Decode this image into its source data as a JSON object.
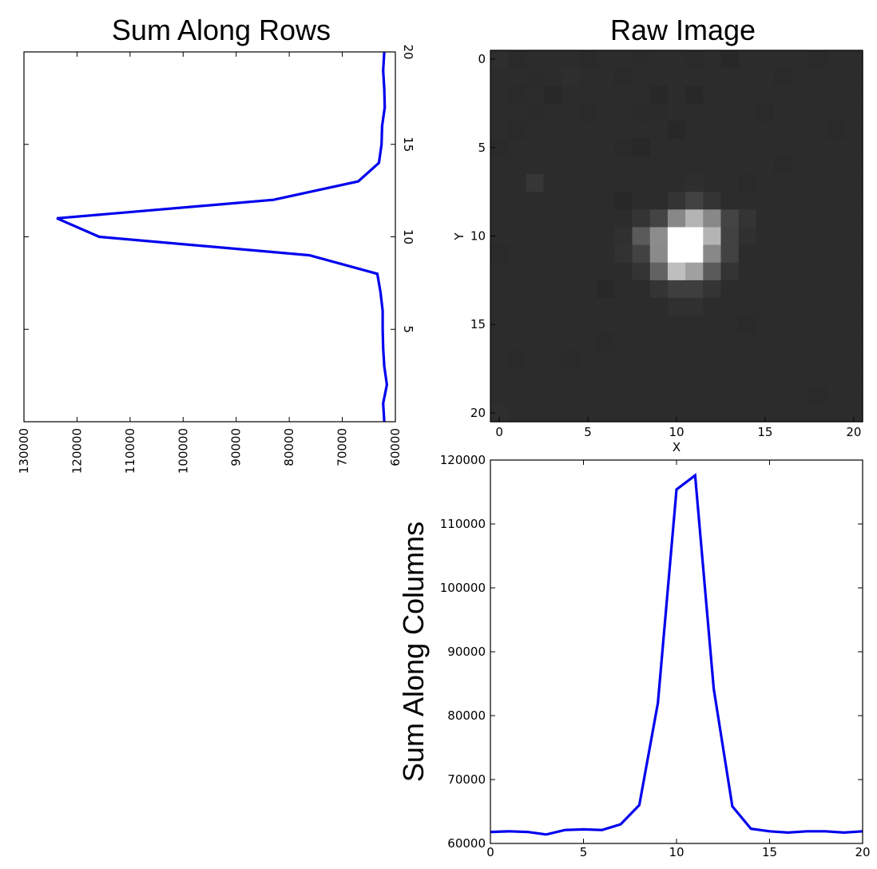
{
  "chart_data": [
    {
      "type": "line",
      "title": "Sum Along Rows",
      "orientation": "rotated",
      "value_axis": {
        "range": [
          60000,
          130000
        ],
        "inverted": true,
        "ticks": [
          130000,
          120000,
          110000,
          100000,
          90000,
          80000,
          70000,
          60000
        ]
      },
      "index_axis": {
        "range": [
          0,
          20
        ],
        "ticks": [
          5,
          10,
          15,
          20
        ]
      },
      "index": [
        0,
        1,
        2,
        3,
        4,
        5,
        6,
        7,
        8,
        9,
        10,
        11,
        12,
        13,
        14,
        15,
        16,
        17,
        18,
        19,
        20
      ],
      "values": [
        62100,
        62300,
        61600,
        62100,
        62300,
        62400,
        62400,
        62800,
        63400,
        76200,
        115800,
        123800,
        83000,
        67000,
        63100,
        62600,
        62500,
        62000,
        62100,
        62300,
        62100
      ],
      "grid": false
    },
    {
      "type": "heatmap",
      "title": "Raw Image",
      "xlabel": "X",
      "ylabel": "Y",
      "xlim": [
        -0.5,
        20.5
      ],
      "ylim": [
        20.5,
        -0.5
      ],
      "xticks": [
        0,
        5,
        10,
        15,
        20
      ],
      "yticks": [
        0,
        5,
        10,
        15,
        20
      ],
      "colormap": "gray",
      "rows": 21,
      "cols": 21,
      "pixels": [
        [
          46,
          42,
          44,
          44,
          44,
          42,
          44,
          44,
          43,
          44,
          44,
          42,
          44,
          40,
          44,
          44,
          44,
          44,
          42,
          44,
          44
        ],
        [
          44,
          44,
          43,
          44,
          46,
          44,
          44,
          42,
          44,
          44,
          44,
          44,
          44,
          44,
          44,
          44,
          42,
          44,
          44,
          44,
          44
        ],
        [
          44,
          42,
          44,
          40,
          44,
          44,
          44,
          44,
          44,
          40,
          44,
          40,
          44,
          44,
          44,
          44,
          44,
          44,
          44,
          44,
          44
        ],
        [
          44,
          44,
          43,
          44,
          44,
          42,
          44,
          44,
          42,
          43,
          44,
          44,
          44,
          44,
          44,
          42,
          44,
          44,
          44,
          44,
          44
        ],
        [
          44,
          42,
          44,
          44,
          44,
          44,
          44,
          44,
          44,
          44,
          40,
          44,
          44,
          44,
          44,
          44,
          44,
          44,
          44,
          42,
          44
        ],
        [
          42,
          44,
          44,
          44,
          44,
          44,
          44,
          42,
          40,
          44,
          44,
          44,
          44,
          44,
          44,
          44,
          44,
          44,
          44,
          44,
          44
        ],
        [
          44,
          44,
          44,
          44,
          44,
          44,
          44,
          44,
          44,
          44,
          44,
          44,
          44,
          44,
          44,
          44,
          42,
          44,
          44,
          44,
          44
        ],
        [
          44,
          44,
          54,
          44,
          44,
          44,
          44,
          44,
          44,
          44,
          44,
          46,
          44,
          44,
          42,
          44,
          44,
          44,
          44,
          44,
          44
        ],
        [
          44,
          44,
          44,
          44,
          44,
          44,
          44,
          40,
          44,
          44,
          52,
          66,
          52,
          44,
          44,
          44,
          44,
          44,
          44,
          44,
          44
        ],
        [
          44,
          44,
          44,
          44,
          44,
          44,
          44,
          44,
          52,
          68,
          136,
          180,
          136,
          68,
          52,
          44,
          44,
          44,
          44,
          44,
          44
        ],
        [
          44,
          44,
          44,
          44,
          44,
          44,
          44,
          48,
          90,
          140,
          255,
          255,
          180,
          66,
          48,
          44,
          44,
          44,
          44,
          44,
          44
        ],
        [
          42,
          44,
          44,
          44,
          44,
          44,
          44,
          50,
          66,
          138,
          255,
          255,
          136,
          66,
          44,
          44,
          44,
          44,
          44,
          44,
          44
        ],
        [
          44,
          44,
          44,
          44,
          44,
          44,
          44,
          44,
          52,
          98,
          190,
          160,
          90,
          52,
          44,
          44,
          44,
          44,
          44,
          44,
          44
        ],
        [
          44,
          44,
          44,
          44,
          44,
          44,
          40,
          44,
          44,
          52,
          62,
          62,
          52,
          44,
          44,
          44,
          44,
          44,
          44,
          44,
          44
        ],
        [
          44,
          44,
          44,
          44,
          44,
          44,
          44,
          44,
          44,
          44,
          48,
          48,
          44,
          44,
          44,
          44,
          44,
          44,
          44,
          44,
          44
        ],
        [
          44,
          44,
          44,
          44,
          44,
          44,
          44,
          44,
          44,
          44,
          44,
          44,
          44,
          44,
          42,
          44,
          44,
          44,
          44,
          44,
          44
        ],
        [
          44,
          44,
          44,
          44,
          44,
          44,
          42,
          44,
          44,
          44,
          44,
          44,
          44,
          44,
          44,
          44,
          44,
          44,
          44,
          44,
          44
        ],
        [
          44,
          42,
          44,
          44,
          42,
          44,
          44,
          44,
          44,
          44,
          44,
          44,
          44,
          44,
          44,
          44,
          44,
          44,
          44,
          44,
          44
        ],
        [
          44,
          44,
          44,
          44,
          44,
          44,
          44,
          44,
          44,
          44,
          44,
          44,
          44,
          44,
          44,
          44,
          44,
          44,
          44,
          44,
          44
        ],
        [
          44,
          44,
          44,
          44,
          44,
          44,
          44,
          44,
          44,
          44,
          44,
          44,
          44,
          44,
          44,
          44,
          44,
          44,
          42,
          44,
          44
        ],
        [
          46,
          44,
          44,
          44,
          44,
          44,
          44,
          44,
          44,
          44,
          44,
          44,
          44,
          44,
          44,
          44,
          44,
          44,
          44,
          44,
          44
        ]
      ]
    },
    {
      "type": "line",
      "ylabel": "Sum Along Columns",
      "xlim": [
        0,
        20
      ],
      "ylim": [
        60000,
        120000
      ],
      "xticks": [
        0,
        5,
        10,
        15,
        20
      ],
      "yticks": [
        60000,
        70000,
        80000,
        90000,
        100000,
        110000,
        120000
      ],
      "x": [
        0,
        1,
        2,
        3,
        4,
        5,
        6,
        7,
        8,
        9,
        10,
        11,
        12,
        13,
        14,
        15,
        16,
        17,
        18,
        19,
        20
      ],
      "values": [
        61800,
        61900,
        61800,
        61400,
        62100,
        62200,
        62100,
        63000,
        66000,
        82000,
        115400,
        117600,
        84200,
        65800,
        62300,
        61900,
        61700,
        61900,
        61900,
        61700,
        61900
      ],
      "grid": false
    }
  ]
}
